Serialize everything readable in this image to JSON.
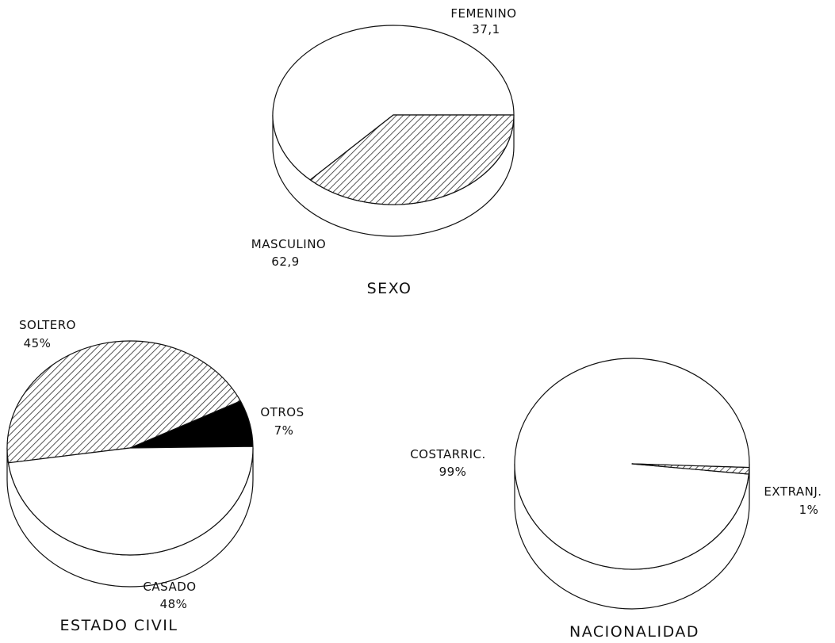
{
  "colors": {
    "background": "#ffffff",
    "ink": "#111111",
    "hatch": "#2a2a2a",
    "solid": "#000000",
    "plain": "#ffffff"
  },
  "chart_data": [
    {
      "type": "pie",
      "title": "SEXO",
      "style": "3d-exploded-depth",
      "slices": [
        {
          "label": "MASCULINO",
          "value_label": "62,9",
          "value": 62.9,
          "fill": "plain"
        },
        {
          "label": "FEMENINO",
          "value_label": "37,1",
          "value": 37.1,
          "fill": "hatch"
        }
      ]
    },
    {
      "type": "pie",
      "title": "ESTADO CIVIL",
      "style": "3d-exploded-depth",
      "slices": [
        {
          "label": "SOLTERO",
          "value_label": "45%",
          "value": 45,
          "fill": "hatch"
        },
        {
          "label": "OTROS",
          "value_label": "7%",
          "value": 7,
          "fill": "solid"
        },
        {
          "label": "CASADO",
          "value_label": "48%",
          "value": 48,
          "fill": "plain"
        }
      ]
    },
    {
      "type": "pie",
      "title": "NACIONALIDAD",
      "style": "3d-exploded-depth",
      "slices": [
        {
          "label": "COSTARRIC.",
          "value_label": "99%",
          "value": 99,
          "fill": "plain"
        },
        {
          "label": "EXTRANJ.",
          "value_label": "1%",
          "value": 1,
          "fill": "hatch"
        }
      ]
    }
  ]
}
